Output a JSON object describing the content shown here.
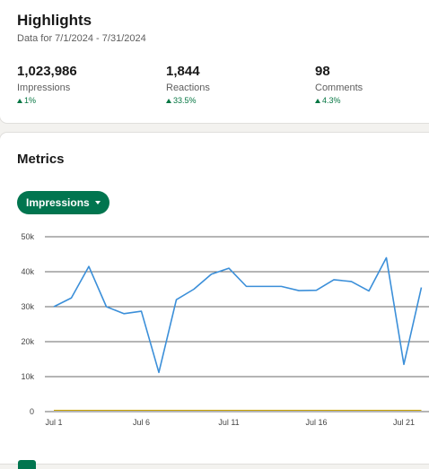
{
  "highlights": {
    "title": "Highlights",
    "subtitle": "Data for 7/1/2024 - 7/31/2024",
    "stats": [
      {
        "value": "1,023,986",
        "label": "Impressions",
        "change": "1%"
      },
      {
        "value": "1,844",
        "label": "Reactions",
        "change": "33.5%"
      },
      {
        "value": "98",
        "label": "Comments",
        "change": "4.3%"
      }
    ]
  },
  "metrics": {
    "title": "Metrics",
    "selector_label": "Impressions"
  },
  "colors": {
    "accent": "#01754f",
    "positive": "#057642",
    "line": "#3b8fd9",
    "gridline": "#3a3a3a"
  },
  "chart_data": {
    "type": "line",
    "x": [
      "Jul 1",
      "Jul 2",
      "Jul 3",
      "Jul 4",
      "Jul 5",
      "Jul 6",
      "Jul 7",
      "Jul 8",
      "Jul 9",
      "Jul 10",
      "Jul 11",
      "Jul 12",
      "Jul 13",
      "Jul 14",
      "Jul 15",
      "Jul 16",
      "Jul 17",
      "Jul 18",
      "Jul 19",
      "Jul 20",
      "Jul 21",
      "Jul 22"
    ],
    "tick_labels": [
      "Jul 1",
      "Jul 6",
      "Jul 11",
      "Jul 16",
      "Jul 21"
    ],
    "y_ticks": [
      "0",
      "10k",
      "20k",
      "30k",
      "40k",
      "50k"
    ],
    "ylim": [
      0,
      50000
    ],
    "grid": true,
    "series": [
      {
        "values": [
          30000,
          32500,
          41500,
          30000,
          28000,
          28700,
          11200,
          32000,
          35000,
          39300,
          41000,
          35800,
          35800,
          35800,
          34600,
          34700,
          37700,
          37200,
          34500,
          44000,
          13500,
          35500
        ]
      },
      {
        "values": [
          400,
          400,
          400,
          400,
          400,
          400,
          400,
          400,
          400,
          400,
          400,
          400,
          400,
          400,
          400,
          400,
          400,
          400,
          400,
          400,
          400,
          400
        ]
      }
    ]
  }
}
